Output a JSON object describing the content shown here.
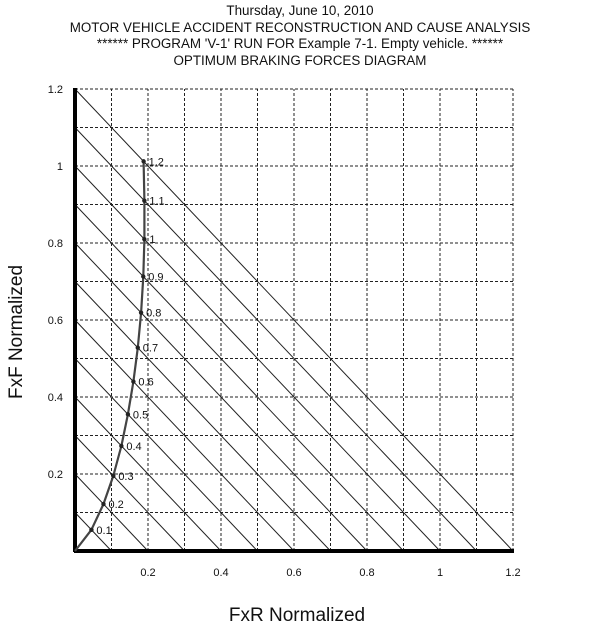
{
  "header": {
    "date": "Thursday, June 10, 2010",
    "program": "MOTOR VEHICLE ACCIDENT RECONSTRUCTION AND CAUSE ANALYSIS",
    "run": "****** PROGRAM 'V-1' RUN FOR Example 7-1. Empty vehicle. ******",
    "diagram": "OPTIMUM BRAKING FORCES DIAGRAM"
  },
  "chart_data": {
    "type": "line",
    "title": "OPTIMUM BRAKING FORCES DIAGRAM",
    "xlabel": "FxR Normalized",
    "ylabel": "FxF Normalized",
    "xlim": [
      0,
      1.2
    ],
    "ylim": [
      0,
      1.2
    ],
    "grid": true,
    "x_ticks": [
      {
        "value": 0.2,
        "label": "0.2"
      },
      {
        "value": 0.4,
        "label": "0.4"
      },
      {
        "value": 0.6,
        "label": "0.6"
      },
      {
        "value": 0.8,
        "label": "0.8"
      },
      {
        "value": 1.0,
        "label": "1"
      },
      {
        "value": 1.2,
        "label": "1.2"
      }
    ],
    "y_ticks": [
      {
        "value": 0.2,
        "label": "0.2"
      },
      {
        "value": 0.4,
        "label": "0.4"
      },
      {
        "value": 0.6,
        "label": "0.6"
      },
      {
        "value": 0.8,
        "label": "0.8"
      },
      {
        "value": 1.0,
        "label": "1"
      },
      {
        "value": 1.2,
        "label": "1.2"
      }
    ],
    "constant_deceleration_lines": [
      0.1,
      0.2,
      0.3,
      0.4,
      0.5,
      0.6,
      0.7,
      0.8,
      0.9,
      1.0,
      1.1,
      1.2
    ],
    "series": [
      {
        "values": [
          {
            "x": 0.0,
            "y": 0.0
          },
          {
            "x": 0.045,
            "y": 0.055,
            "label": "0.1"
          },
          {
            "x": 0.078,
            "y": 0.122,
            "label": "0.2"
          },
          {
            "x": 0.105,
            "y": 0.195,
            "label": "0.3"
          },
          {
            "x": 0.127,
            "y": 0.273,
            "label": "0.4"
          },
          {
            "x": 0.145,
            "y": 0.355,
            "label": "0.5"
          },
          {
            "x": 0.16,
            "y": 0.44,
            "label": "0.6"
          },
          {
            "x": 0.172,
            "y": 0.528,
            "label": "0.7"
          },
          {
            "x": 0.181,
            "y": 0.619,
            "label": "0.8"
          },
          {
            "x": 0.187,
            "y": 0.713,
            "label": "0.9"
          },
          {
            "x": 0.19,
            "y": 0.81,
            "label": "1"
          },
          {
            "x": 0.19,
            "y": 0.91,
            "label": "1.1"
          },
          {
            "x": 0.188,
            "y": 1.012,
            "label": "1.2"
          }
        ]
      }
    ]
  }
}
